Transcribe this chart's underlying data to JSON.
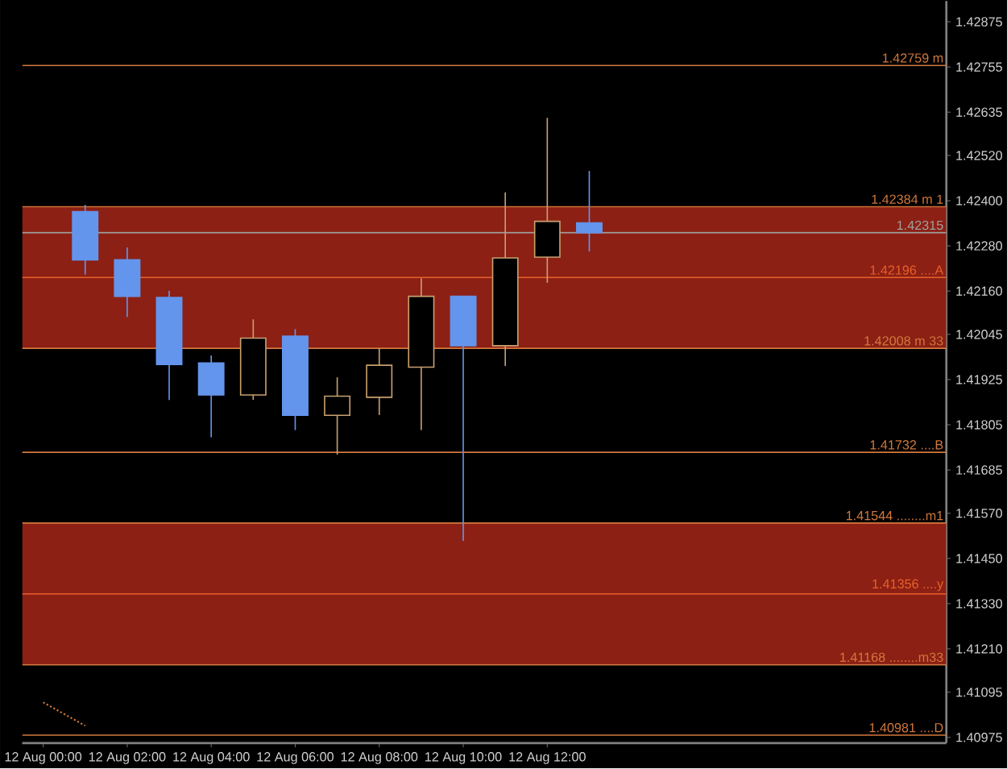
{
  "chart_data": {
    "type": "candlestick",
    "categories": [
      "12 Aug 00:00",
      null,
      "12 Aug 02:00",
      null,
      "12 Aug 04:00",
      null,
      "12 Aug 06:00",
      null,
      "12 Aug 08:00",
      null,
      "12 Aug 10:00",
      null,
      "12 Aug 12:00",
      null,
      null,
      null,
      null,
      null,
      null,
      null,
      null,
      null
    ],
    "ohlc": [
      null,
      [
        1.42371,
        1.42389,
        1.42204,
        1.42243
      ],
      [
        1.42243,
        1.42276,
        1.42091,
        1.42146
      ],
      [
        1.42143,
        1.42161,
        1.41871,
        1.41965
      ],
      [
        1.41969,
        1.41989,
        1.41772,
        1.41884
      ],
      [
        1.41884,
        1.42085,
        1.41871,
        1.42035
      ],
      [
        1.4204,
        1.42059,
        1.41791,
        1.4183
      ],
      [
        1.4183,
        1.41931,
        1.41726,
        1.41881
      ],
      [
        1.41878,
        1.42008,
        1.41831,
        1.41963
      ],
      [
        1.41958,
        1.42194,
        1.41791,
        1.42146
      ],
      [
        1.42146,
        1.42146,
        1.41497,
        1.42015
      ],
      [
        1.42015,
        1.42422,
        1.41961,
        1.42248
      ],
      [
        1.4225,
        1.4262,
        1.42182,
        1.42345
      ],
      [
        1.42341,
        1.42479,
        1.42265,
        1.42315
      ],
      null,
      null,
      null,
      null,
      null,
      null,
      null,
      null
    ],
    "colors": [
      null,
      "#6495ed",
      "#6495ed",
      "#6495ed",
      "#6495ed",
      "#c8a070",
      "#6495ed",
      "#c8a070",
      "#c8a070",
      "#c8a070",
      "#6495ed",
      "#c8a070",
      "#c8a070",
      "#6495ed",
      null,
      null,
      null,
      null,
      null,
      null,
      null,
      null
    ],
    "series": [
      {
        "type": "line",
        "values": [
          1.41068,
          1.41006,
          null,
          null,
          null,
          null,
          null,
          null,
          null,
          null,
          null,
          null,
          null,
          null,
          null,
          null,
          null,
          null,
          null,
          null,
          null,
          null
        ],
        "color": "#d2783c",
        "line_style": "dotted"
      }
    ],
    "ylim": [
      1.4096,
      1.4293
    ],
    "yticks": [
      {
        "value": 1.42875,
        "label": "1.42875"
      },
      {
        "value": 1.42755,
        "label": "1.42755"
      },
      {
        "value": 1.42635,
        "label": "1.42635"
      },
      {
        "value": 1.4252,
        "label": "1.42520"
      },
      {
        "value": 1.424,
        "label": "1.42400"
      },
      {
        "value": 1.4228,
        "label": "1.42280"
      },
      {
        "value": 1.4216,
        "label": "1.42160"
      },
      {
        "value": 1.42045,
        "label": "1.42045"
      },
      {
        "value": 1.41925,
        "label": "1.41925"
      },
      {
        "value": 1.41805,
        "label": "1.41805"
      },
      {
        "value": 1.41685,
        "label": "1.41685"
      },
      {
        "value": 1.4157,
        "label": "1.41570"
      },
      {
        "value": 1.4145,
        "label": "1.41450"
      },
      {
        "value": 1.4133,
        "label": "1.41330"
      },
      {
        "value": 1.4121,
        "label": "1.41210"
      },
      {
        "value": 1.41095,
        "label": "1.41095"
      },
      {
        "value": 1.40975,
        "label": "1.40975"
      }
    ],
    "bands": [
      {
        "axis": "y",
        "from": 1.42008,
        "to": 1.42384,
        "color": "#8c2014"
      },
      {
        "axis": "y",
        "from": 1.41168,
        "to": 1.41544,
        "color": "#8c2014"
      }
    ],
    "ref_lines": [
      {
        "axis": "y",
        "value": 1.42759,
        "label": "1.42759 m",
        "color": "#d2783c"
      },
      {
        "axis": "y",
        "value": 1.42384,
        "label": "1.42384 m 1",
        "color": "#d2783c"
      },
      {
        "axis": "y",
        "value": 1.42315,
        "label": "1.42315",
        "color": "#a0a0a0"
      },
      {
        "axis": "y",
        "value": 1.42196,
        "label": "1.42196 ....A",
        "color": "#e8602a"
      },
      {
        "axis": "y",
        "value": 1.42008,
        "label": "1.42008 m 33",
        "color": "#d2783c"
      },
      {
        "axis": "y",
        "value": 1.41732,
        "label": "1.41732 ....B",
        "color": "#d2783c"
      },
      {
        "axis": "y",
        "value": 1.41544,
        "label": "1.41544 ........m1",
        "color": "#d2783c"
      },
      {
        "axis": "y",
        "value": 1.41356,
        "label": "1.41356 ....y",
        "color": "#e8602a"
      },
      {
        "axis": "y",
        "value": 1.41168,
        "label": "1.41168 ........m33",
        "color": "#d2783c"
      },
      {
        "axis": "y",
        "value": 1.40981,
        "label": "1.40981 ....D",
        "color": "#d2783c"
      }
    ]
  }
}
